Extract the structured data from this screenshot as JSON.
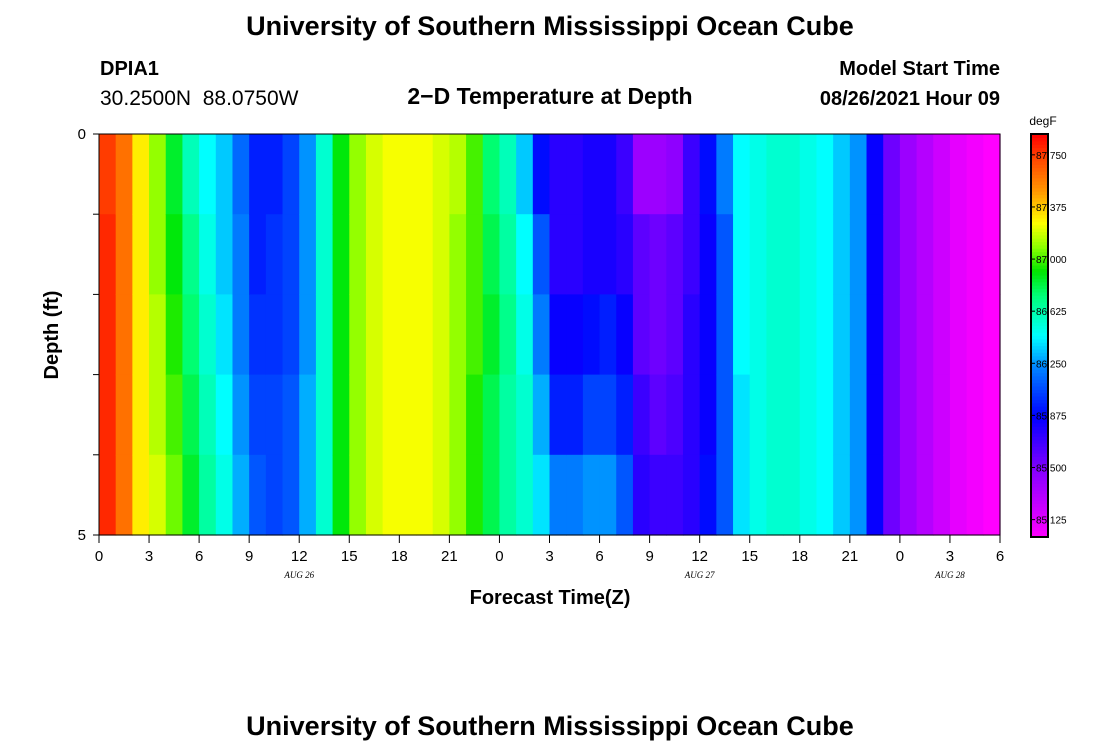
{
  "header": {
    "title": "University of Southern Mississippi Ocean Cube",
    "station": "DPIA1",
    "coords": "30.2500N  88.0750W",
    "plot_title": "2−D Temperature at Depth",
    "model_label": "Model Start Time",
    "model_time": "08/26/2021 Hour 09"
  },
  "footer": {
    "title": "University of Southern Mississippi Ocean Cube"
  },
  "chart_data": {
    "type": "heatmap",
    "title": "2−D Temperature at Depth",
    "xlabel": "Forecast Time(Z)",
    "ylabel": "Depth (ft)",
    "x_start": "2021-08-26 00Z",
    "x_end": "2021-08-28 06Z",
    "x_tick_labels": [
      "0",
      "3",
      "6",
      "9",
      "12",
      "15",
      "18",
      "21",
      "0",
      "3",
      "6",
      "9",
      "12",
      "15",
      "18",
      "21",
      "0",
      "3",
      "6"
    ],
    "date_labels": [
      {
        "text": "AUG 26",
        "hour": 12
      },
      {
        "text": "AUG 27",
        "hour": 36
      },
      {
        "text": "AUG 28",
        "hour": 51
      }
    ],
    "y_tick_labels": [
      "0",
      "5"
    ],
    "ylim": [
      0,
      5
    ],
    "colorbar": {
      "unit": "degF",
      "min": 85.0,
      "max": 87.9,
      "tick_labels": [
        "87.750",
        "87.375",
        "87.000",
        "86.625",
        "86.250",
        "85.875",
        "85.500",
        "85.125"
      ],
      "tick_values": [
        87.75,
        87.375,
        87.0,
        86.625,
        86.25,
        85.875,
        85.5,
        85.125
      ]
    },
    "depth_levels": [
      0,
      1,
      2,
      3,
      4,
      5
    ],
    "temperature_by_hour": [
      {
        "hour": 0,
        "values": [
          87.75,
          87.8,
          87.8,
          87.8,
          87.8
        ]
      },
      {
        "hour": 1,
        "values": [
          87.6,
          87.6,
          87.6,
          87.6,
          87.6
        ]
      },
      {
        "hour": 2,
        "values": [
          87.3,
          87.3,
          87.3,
          87.3,
          87.3
        ]
      },
      {
        "hour": 3,
        "values": [
          87.1,
          87.1,
          87.15,
          87.15,
          87.2
        ]
      },
      {
        "hour": 4,
        "values": [
          86.85,
          86.9,
          86.95,
          87.0,
          87.05
        ]
      },
      {
        "hour": 5,
        "values": [
          86.6,
          86.7,
          86.75,
          86.8,
          86.85
        ]
      },
      {
        "hour": 6,
        "values": [
          86.45,
          86.5,
          86.55,
          86.6,
          86.65
        ]
      },
      {
        "hour": 7,
        "values": [
          86.35,
          86.35,
          86.4,
          86.45,
          86.5
        ]
      },
      {
        "hour": 8,
        "values": [
          86.15,
          86.2,
          86.2,
          86.25,
          86.3
        ]
      },
      {
        "hour": 9,
        "values": [
          85.95,
          85.95,
          86.0,
          86.05,
          86.1
        ]
      },
      {
        "hour": 10,
        "values": [
          85.95,
          86.0,
          86.0,
          86.05,
          86.05
        ]
      },
      {
        "hour": 11,
        "values": [
          86.05,
          86.05,
          86.05,
          86.1,
          86.1
        ]
      },
      {
        "hour": 12,
        "values": [
          86.25,
          86.25,
          86.25,
          86.3,
          86.3
        ]
      },
      {
        "hour": 13,
        "values": [
          86.55,
          86.55,
          86.55,
          86.55,
          86.55
        ]
      },
      {
        "hour": 14,
        "values": [
          86.9,
          86.9,
          86.9,
          86.9,
          86.9
        ]
      },
      {
        "hour": 15,
        "values": [
          87.1,
          87.1,
          87.1,
          87.1,
          87.1
        ]
      },
      {
        "hour": 16,
        "values": [
          87.2,
          87.2,
          87.2,
          87.2,
          87.2
        ]
      },
      {
        "hour": 17,
        "values": [
          87.25,
          87.25,
          87.25,
          87.25,
          87.25
        ]
      },
      {
        "hour": 18,
        "values": [
          87.25,
          87.25,
          87.25,
          87.25,
          87.25
        ]
      },
      {
        "hour": 19,
        "values": [
          87.25,
          87.25,
          87.25,
          87.25,
          87.25
        ]
      },
      {
        "hour": 20,
        "values": [
          87.2,
          87.2,
          87.2,
          87.2,
          87.2
        ]
      },
      {
        "hour": 21,
        "values": [
          87.15,
          87.1,
          87.1,
          87.1,
          87.1
        ]
      },
      {
        "hour": 22,
        "values": [
          87.0,
          87.0,
          87.0,
          86.95,
          86.95
        ]
      },
      {
        "hour": 23,
        "values": [
          86.75,
          86.8,
          86.85,
          86.8,
          86.8
        ]
      },
      {
        "hour": 24,
        "values": [
          86.6,
          86.65,
          86.7,
          86.65,
          86.65
        ]
      },
      {
        "hour": 25,
        "values": [
          86.35,
          86.45,
          86.5,
          86.55,
          86.55
        ]
      },
      {
        "hour": 26,
        "values": [
          85.9,
          86.1,
          86.2,
          86.3,
          86.4
        ]
      },
      {
        "hour": 27,
        "values": [
          85.75,
          85.75,
          85.85,
          85.95,
          86.2
        ]
      },
      {
        "hour": 28,
        "values": [
          85.75,
          85.75,
          85.85,
          85.95,
          86.2
        ]
      },
      {
        "hour": 29,
        "values": [
          85.8,
          85.8,
          85.9,
          86.05,
          86.25
        ]
      },
      {
        "hour": 30,
        "values": [
          85.8,
          85.8,
          85.95,
          86.05,
          86.25
        ]
      },
      {
        "hour": 31,
        "values": [
          85.7,
          85.75,
          85.85,
          85.95,
          86.1
        ]
      },
      {
        "hour": 32,
        "values": [
          85.4,
          85.6,
          85.6,
          85.7,
          85.75
        ]
      },
      {
        "hour": 33,
        "values": [
          85.4,
          85.55,
          85.55,
          85.6,
          85.7
        ]
      },
      {
        "hour": 34,
        "values": [
          85.45,
          85.6,
          85.6,
          85.65,
          85.7
        ]
      },
      {
        "hour": 35,
        "values": [
          85.7,
          85.7,
          85.75,
          85.75,
          85.75
        ]
      },
      {
        "hour": 36,
        "values": [
          85.9,
          85.85,
          85.85,
          85.85,
          85.9
        ]
      },
      {
        "hour": 37,
        "values": [
          86.2,
          86.1,
          86.1,
          86.1,
          86.1
        ]
      },
      {
        "hour": 38,
        "values": [
          86.45,
          86.45,
          86.45,
          86.4,
          86.4
        ]
      },
      {
        "hour": 39,
        "values": [
          86.5,
          86.5,
          86.5,
          86.5,
          86.5
        ]
      },
      {
        "hour": 40,
        "values": [
          86.55,
          86.55,
          86.55,
          86.55,
          86.55
        ]
      },
      {
        "hour": 41,
        "values": [
          86.55,
          86.55,
          86.55,
          86.55,
          86.55
        ]
      },
      {
        "hour": 42,
        "values": [
          86.5,
          86.5,
          86.5,
          86.5,
          86.5
        ]
      },
      {
        "hour": 43,
        "values": [
          86.45,
          86.45,
          86.45,
          86.45,
          86.45
        ]
      },
      {
        "hour": 44,
        "values": [
          86.35,
          86.35,
          86.35,
          86.35,
          86.35
        ]
      },
      {
        "hour": 45,
        "values": [
          86.25,
          86.25,
          86.25,
          86.25,
          86.25
        ]
      },
      {
        "hour": 46,
        "values": [
          85.85,
          85.85,
          85.85,
          85.85,
          85.85
        ]
      },
      {
        "hour": 47,
        "values": [
          85.55,
          85.55,
          85.55,
          85.55,
          85.55
        ]
      },
      {
        "hour": 48,
        "values": [
          85.4,
          85.4,
          85.4,
          85.4,
          85.4
        ]
      },
      {
        "hour": 49,
        "values": [
          85.3,
          85.3,
          85.3,
          85.3,
          85.3
        ]
      },
      {
        "hour": 50,
        "values": [
          85.2,
          85.2,
          85.2,
          85.2,
          85.2
        ]
      },
      {
        "hour": 51,
        "values": [
          85.1,
          85.1,
          85.1,
          85.1,
          85.1
        ]
      },
      {
        "hour": 52,
        "values": [
          85.05,
          85.05,
          85.05,
          85.05,
          85.05
        ]
      },
      {
        "hour": 53,
        "values": [
          85.0,
          85.0,
          85.0,
          85.0,
          85.0
        ]
      }
    ]
  }
}
